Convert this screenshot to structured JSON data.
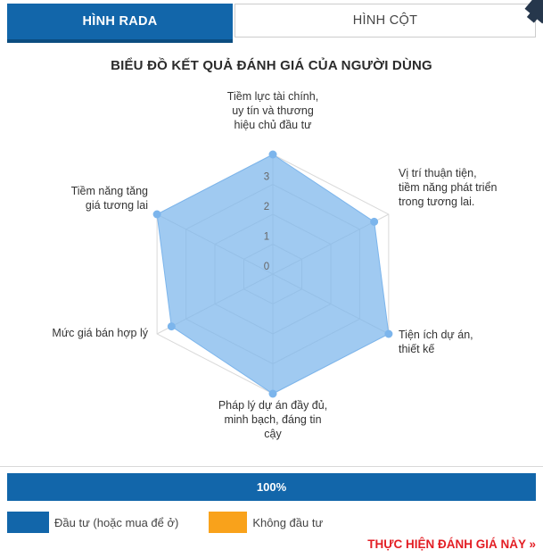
{
  "tabs": [
    {
      "label": "HÌNH RADA",
      "active": true
    },
    {
      "label": "HÌNH CỘT",
      "active": false
    }
  ],
  "title": "BIỂU ĐỒ KẾT QUẢ ĐÁNH GIÁ CỦA NGƯỜI DÙNG",
  "chart_data": {
    "type": "radar",
    "categories": [
      "Tiềm lực tài chính, uy tín và thương hiệu chủ đầu tư",
      "Vị trí thuận tiện, tiềm năng phát triển trong tương lai.",
      "Tiện ích dự án, thiết kế",
      "Pháp lý dự án đầy đủ, minh bạch, đáng tin cậy",
      "Mức giá bán hợp lý",
      "Tiềm năng tăng giá tương lai"
    ],
    "series": [
      {
        "name": "Đầu tư (hoặc mua để ở)",
        "values": [
          4,
          3.5,
          4,
          4,
          3.5,
          4
        ],
        "color": "#7cb5ec"
      }
    ],
    "axis": {
      "min": 0,
      "max": 4,
      "tick_interval": 1,
      "tick_labels": [
        "0",
        "1",
        "2",
        "3"
      ]
    },
    "grid": {
      "shape": "hexagon",
      "rings": 4,
      "line_color": "#d9d9d9"
    },
    "legend_position": "none",
    "title": ""
  },
  "progress": {
    "label": "100%",
    "color": "#1266aa"
  },
  "legend": [
    {
      "label": "Đầu tư (hoặc mua để ở)",
      "color": "#1266aa"
    },
    {
      "label": "Không đầu tư",
      "color": "#f9a21b"
    }
  ],
  "action_link": {
    "label": "THỰC HIỆN ĐÁNH GIÁ NÀY »"
  },
  "colors": {
    "tab_active_bg": "#1266aa",
    "tab_active_border": "#0b4d80",
    "series_fill": "#7cb5ec",
    "tick_label": "#666666",
    "link_red": "#e31e24"
  }
}
